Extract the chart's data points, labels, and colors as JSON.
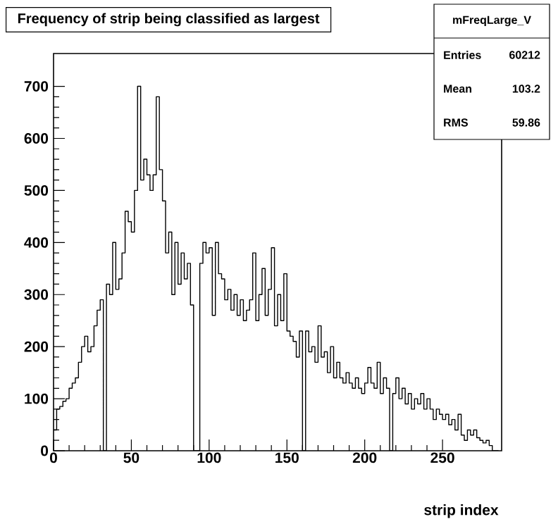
{
  "chart_data": {
    "type": "histogram",
    "title": "Frequency of strip being classified as largest",
    "xlabel": "strip index",
    "bins": [
      0,
      2,
      4,
      6,
      8,
      10,
      12,
      14,
      16,
      18,
      20,
      22,
      24,
      26,
      28,
      30,
      32,
      34,
      36,
      38,
      40,
      42,
      44,
      46,
      48,
      50,
      52,
      54,
      56,
      58,
      60,
      62,
      64,
      66,
      68,
      70,
      72,
      74,
      76,
      78,
      80,
      82,
      84,
      86,
      88,
      90,
      92,
      94,
      96,
      98,
      100,
      102,
      104,
      106,
      108,
      110,
      112,
      114,
      116,
      118,
      120,
      122,
      124,
      126,
      128,
      130,
      132,
      134,
      136,
      138,
      140,
      142,
      144,
      146,
      148,
      150,
      152,
      154,
      156,
      158,
      160,
      162,
      164,
      166,
      168,
      170,
      172,
      174,
      176,
      178,
      180,
      182,
      184,
      186,
      188,
      190,
      192,
      194,
      196,
      198,
      200,
      202,
      204,
      206,
      208,
      210,
      212,
      214,
      216,
      218,
      220,
      222,
      224,
      226,
      228,
      230,
      232,
      234,
      236,
      238,
      240,
      242,
      244,
      246,
      248,
      250,
      252,
      254,
      256,
      258,
      260,
      262,
      264,
      266,
      268,
      270,
      272,
      274,
      276,
      278,
      280,
      282,
      284,
      286
    ],
    "values": [
      40,
      80,
      85,
      95,
      100,
      120,
      130,
      140,
      170,
      200,
      220,
      190,
      200,
      240,
      270,
      290,
      0,
      320,
      300,
      400,
      310,
      330,
      380,
      460,
      440,
      420,
      500,
      700,
      520,
      560,
      530,
      500,
      530,
      680,
      540,
      480,
      380,
      420,
      300,
      400,
      320,
      380,
      330,
      360,
      280,
      0,
      0,
      360,
      400,
      380,
      390,
      260,
      400,
      340,
      330,
      290,
      310,
      270,
      300,
      260,
      290,
      250,
      270,
      290,
      380,
      250,
      300,
      350,
      260,
      310,
      390,
      240,
      300,
      250,
      340,
      230,
      220,
      210,
      180,
      230,
      0,
      230,
      190,
      200,
      170,
      240,
      180,
      190,
      150,
      200,
      140,
      170,
      140,
      130,
      150,
      130,
      120,
      140,
      120,
      110,
      130,
      160,
      130,
      120,
      170,
      110,
      140,
      120,
      0,
      110,
      140,
      100,
      120,
      90,
      110,
      80,
      100,
      90,
      110,
      80,
      100,
      80,
      60,
      80,
      70,
      60,
      70,
      50,
      60,
      40,
      70,
      30,
      20,
      40,
      30,
      40,
      25,
      20,
      15,
      20,
      10,
      0,
      0
    ],
    "color": "#000000",
    "xlim": [
      0,
      288
    ],
    "ylim": [
      0,
      763
    ],
    "xticks": [
      0,
      50,
      100,
      150,
      200,
      250
    ],
    "yticks": [
      0,
      100,
      200,
      300,
      400,
      500,
      600,
      700
    ],
    "grid": false,
    "annotations": [
      "mFreqLarge_V",
      "Entries",
      "60212",
      "Mean",
      "103.2",
      "RMS",
      "59.86"
    ]
  }
}
